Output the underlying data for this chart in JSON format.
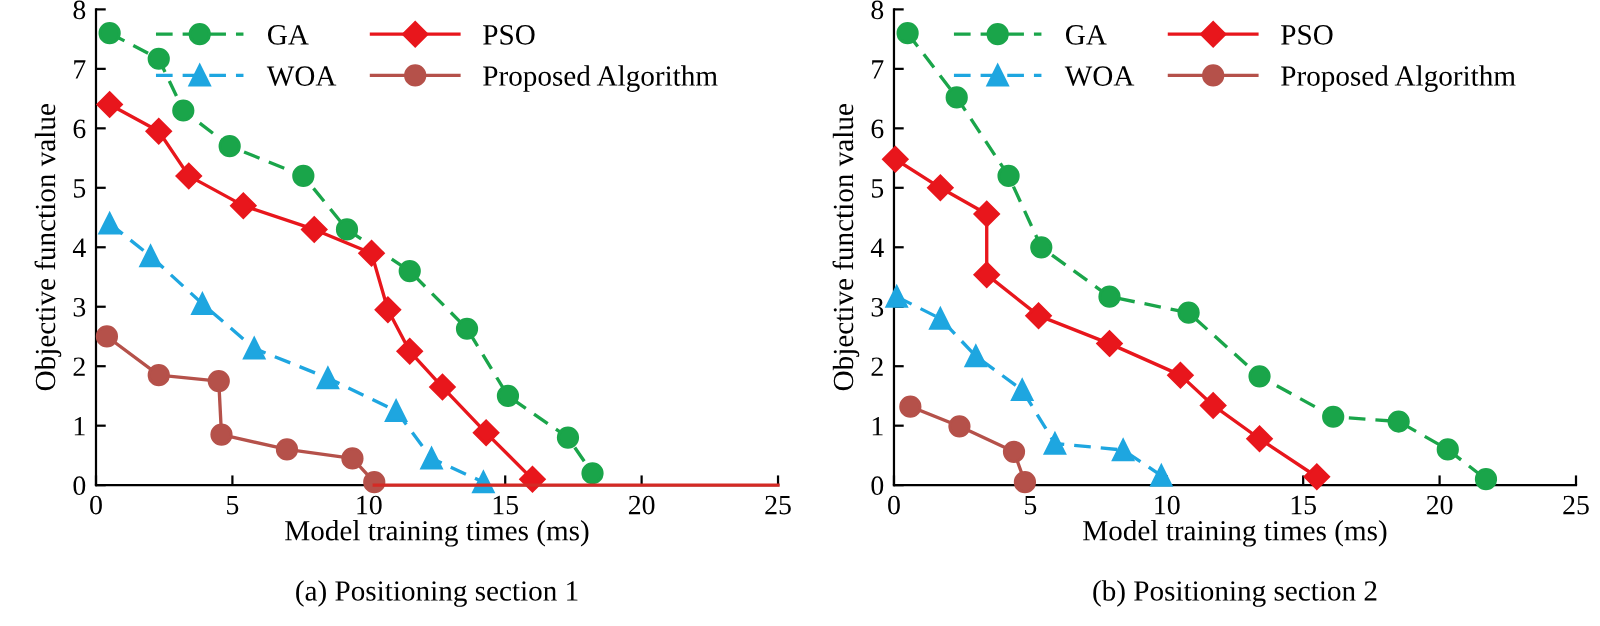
{
  "chart_data": [
    {
      "type": "line",
      "title": "(a) Positioning section 1",
      "xlabel": "Model training times (ms)",
      "ylabel": "Objective function value",
      "xlim": [
        0,
        25
      ],
      "ylim": [
        0,
        8
      ],
      "xticks": [
        0,
        5,
        10,
        15,
        20,
        25
      ],
      "yticks": [
        0,
        1,
        2,
        3,
        4,
        5,
        6,
        7,
        8
      ],
      "grid": false,
      "legend": "top",
      "series": [
        {
          "name": "GA",
          "color": "#1aa54a",
          "marker": "circle",
          "line_style": "dashed",
          "x": [
            0.5,
            2.3,
            3.2,
            4.9,
            7.6,
            9.2,
            11.5,
            13.6,
            15.1,
            17.3,
            18.2
          ],
          "values": [
            7.6,
            7.17,
            6.3,
            5.7,
            5.2,
            4.3,
            3.6,
            2.63,
            1.5,
            0.8,
            0.2
          ]
        },
        {
          "name": "PSO",
          "color": "#e8161c",
          "marker": "diamond",
          "line_style": "solid",
          "x": [
            0.5,
            2.3,
            3.4,
            5.4,
            8.0,
            10.1,
            10.7,
            11.5,
            12.7,
            14.3,
            16.0
          ],
          "values": [
            6.4,
            5.95,
            5.2,
            4.7,
            4.3,
            3.9,
            2.95,
            2.25,
            1.65,
            0.88,
            0.1
          ]
        },
        {
          "name": "WOA",
          "color": "#1ea6e0",
          "marker": "triangle",
          "line_style": "dashed",
          "x": [
            0.5,
            2.0,
            3.9,
            5.8,
            8.5,
            11.0,
            12.3,
            14.2
          ],
          "values": [
            4.4,
            3.85,
            3.05,
            2.3,
            1.8,
            1.25,
            0.45,
            0.05
          ]
        },
        {
          "name": "Proposed Algorithm",
          "color": "#b5514a",
          "marker": "circle",
          "line_style": "solid",
          "x": [
            0.4,
            2.3,
            4.5,
            4.6,
            7.0,
            9.4,
            10.2
          ],
          "values": [
            2.5,
            1.85,
            1.75,
            0.85,
            0.6,
            0.45,
            0.05
          ]
        },
        {
          "color": "#d42a25",
          "marker": "none",
          "line_style": "solid",
          "x": [
            10.2,
            25
          ],
          "values": [
            0,
            0
          ]
        }
      ]
    },
    {
      "type": "line",
      "title": "(b) Positioning section 2",
      "xlabel": "Model training times (ms)",
      "ylabel": "Objective function value",
      "xlim": [
        0,
        25
      ],
      "ylim": [
        0,
        8
      ],
      "xticks": [
        0,
        5,
        10,
        15,
        20,
        25
      ],
      "yticks": [
        0,
        1,
        2,
        3,
        4,
        5,
        6,
        7,
        8
      ],
      "grid": false,
      "legend": "top",
      "series": [
        {
          "name": "GA",
          "color": "#1aa54a",
          "marker": "circle",
          "line_style": "dashed",
          "x": [
            0.5,
            2.3,
            4.2,
            5.4,
            7.9,
            10.8,
            13.4,
            16.1,
            18.5,
            20.3,
            21.7
          ],
          "values": [
            7.6,
            6.52,
            5.2,
            4.0,
            3.17,
            2.9,
            1.83,
            1.15,
            1.07,
            0.6,
            0.1
          ]
        },
        {
          "name": "PSO",
          "color": "#e8161c",
          "marker": "diamond",
          "line_style": "solid",
          "x": [
            0.05,
            1.7,
            3.4,
            3.4,
            5.3,
            7.9,
            10.5,
            11.7,
            13.4,
            15.5
          ],
          "values": [
            5.48,
            5.0,
            4.56,
            3.54,
            2.85,
            2.38,
            1.85,
            1.34,
            0.78,
            0.14
          ]
        },
        {
          "name": "WOA",
          "color": "#1ea6e0",
          "marker": "triangle",
          "line_style": "dashed",
          "x": [
            0.1,
            1.7,
            3.0,
            4.7,
            5.9,
            8.4,
            9.8
          ],
          "values": [
            3.17,
            2.8,
            2.17,
            1.6,
            0.7,
            0.59,
            0.16
          ]
        },
        {
          "name": "Proposed Algorithm",
          "color": "#b5514a",
          "marker": "circle",
          "line_style": "solid",
          "x": [
            0.6,
            2.4,
            4.4,
            4.8
          ],
          "values": [
            1.32,
            0.99,
            0.56,
            0.05
          ]
        }
      ]
    }
  ]
}
